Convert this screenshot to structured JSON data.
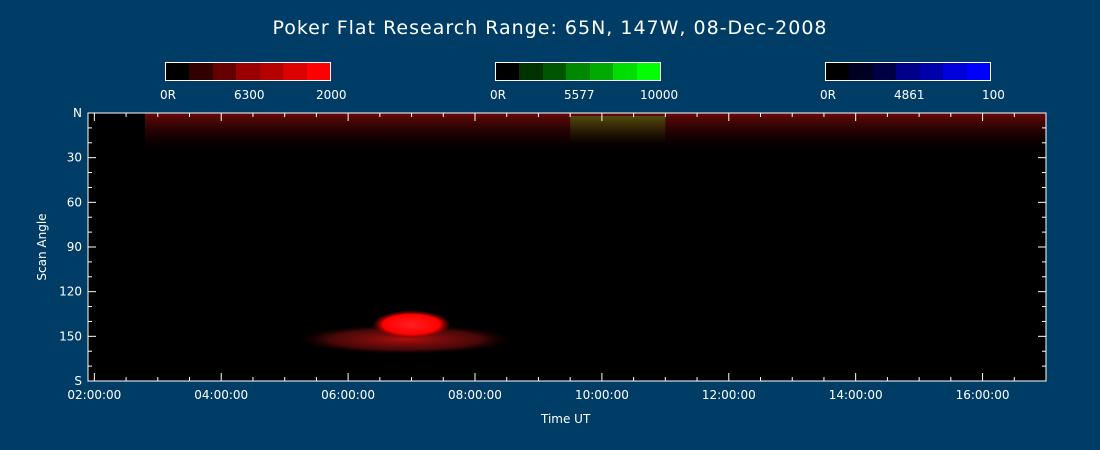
{
  "chart_data": {
    "type": "heatmap",
    "title": "Poker Flat Research Range: 65N, 147W, 08-Dec-2008",
    "xlabel": "Time UT",
    "ylabel": "Scan Angle",
    "x_ticks": [
      "02:00:00",
      "04:00:00",
      "06:00:00",
      "08:00:00",
      "10:00:00",
      "12:00:00",
      "14:00:00",
      "16:00:00"
    ],
    "x_tick_hours": [
      2,
      4,
      6,
      8,
      10,
      12,
      14,
      16
    ],
    "xlim_hours": [
      1.9,
      17.0
    ],
    "y_ticks": [
      "N",
      "30",
      "60",
      "90",
      "120",
      "150",
      "S"
    ],
    "y_tick_values": [
      0,
      30,
      60,
      90,
      120,
      150,
      180
    ],
    "ylim": [
      0,
      180
    ],
    "colorbars": [
      {
        "channel": "6300",
        "min_label": "0R",
        "max_label": "2000",
        "color": "#ff0000",
        "segments": [
          "#000000",
          "#330000",
          "#660000",
          "#990000",
          "#b30000",
          "#dd0000",
          "#ff0000"
        ]
      },
      {
        "channel": "5577",
        "min_label": "0R",
        "max_label": "10000",
        "color": "#00ff00",
        "segments": [
          "#000000",
          "#003300",
          "#005500",
          "#008800",
          "#00aa00",
          "#00dd00",
          "#00ff00"
        ]
      },
      {
        "channel": "4861",
        "min_label": "0R",
        "max_label": "100",
        "color": "#0000ff",
        "segments": [
          "#000000",
          "#000022",
          "#000044",
          "#000088",
          "#0000aa",
          "#0000dd",
          "#0000ff"
        ]
      }
    ],
    "features": [
      {
        "channel": "6300",
        "kind": "band",
        "t_start": 2.8,
        "t_end": 17.0,
        "angle_start": 0,
        "angle_end": 25
      },
      {
        "channel": "5577",
        "kind": "band",
        "t_start": 9.5,
        "t_end": 11.0,
        "angle_start": 2,
        "angle_end": 20
      },
      {
        "channel": "6300",
        "kind": "blob",
        "t_center": 7.0,
        "angle_center": 142,
        "t_halfwidth": 0.6,
        "angle_halfwidth": 9
      },
      {
        "channel": "6300",
        "kind": "blob",
        "t_center": 6.9,
        "angle_center": 152,
        "t_halfwidth": 1.7,
        "angle_halfwidth": 10
      }
    ]
  }
}
